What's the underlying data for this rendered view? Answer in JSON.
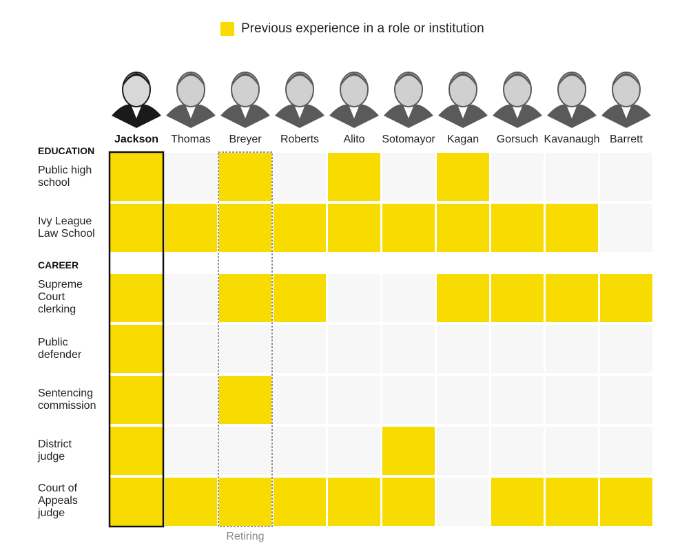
{
  "legend": {
    "label": "Previous experience in a role or institution",
    "color": "#f8db00"
  },
  "colors": {
    "filled": "#f8db00",
    "empty": "#f7f7f7",
    "highlight_border": "#111111",
    "retiring_border": "#888888",
    "portrait": "#5a5a5a"
  },
  "chart_data": {
    "type": "heatmap",
    "title": "",
    "legend": {
      "entries": [
        "Previous experience in a role or institution"
      ],
      "placement": "top-center"
    },
    "columns": [
      "Jackson",
      "Thomas",
      "Breyer",
      "Roberts",
      "Alito",
      "Sotomayor",
      "Kagan",
      "Gorsuch",
      "Kavanaugh",
      "Barrett"
    ],
    "highlight_column": "Jackson",
    "retiring_column": "Breyer",
    "retiring_label": "Retiring",
    "sections": [
      {
        "name": "EDUCATION",
        "rows": [
          {
            "label": [
              "Public high",
              "school"
            ],
            "values": [
              1,
              0,
              1,
              0,
              1,
              0,
              1,
              0,
              0,
              0
            ]
          },
          {
            "label": [
              "Ivy League",
              "Law School"
            ],
            "values": [
              1,
              1,
              1,
              1,
              1,
              1,
              1,
              1,
              1,
              0
            ]
          }
        ]
      },
      {
        "name": "CAREER",
        "rows": [
          {
            "label": [
              "Supreme",
              "Court",
              "clerking"
            ],
            "values": [
              1,
              0,
              1,
              1,
              0,
              0,
              1,
              1,
              1,
              1
            ]
          },
          {
            "label": [
              "Public",
              "defender"
            ],
            "values": [
              1,
              0,
              0,
              0,
              0,
              0,
              0,
              0,
              0,
              0
            ]
          },
          {
            "label": [
              "Sentencing",
              "commission"
            ],
            "values": [
              1,
              0,
              1,
              0,
              0,
              0,
              0,
              0,
              0,
              0
            ]
          },
          {
            "label": [
              "District",
              "judge"
            ],
            "values": [
              1,
              0,
              0,
              0,
              0,
              1,
              0,
              0,
              0,
              0
            ]
          },
          {
            "label": [
              "Court of",
              "Appeals",
              "judge"
            ],
            "values": [
              1,
              1,
              1,
              1,
              1,
              1,
              0,
              1,
              1,
              1
            ]
          }
        ]
      }
    ]
  }
}
